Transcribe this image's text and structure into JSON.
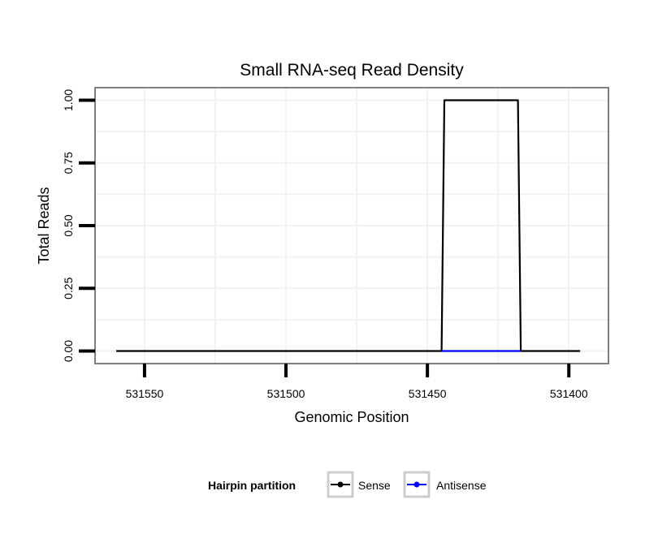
{
  "chart_data": {
    "type": "line",
    "title": "Small RNA-seq Read Density",
    "xlabel": "Genomic Position",
    "ylabel": "Total Reads",
    "xlim": [
      531567.5,
      531386
    ],
    "x_reversed": true,
    "ylim": [
      -0.05,
      1.05
    ],
    "x_ticks": [
      531550,
      531500,
      531450,
      531400
    ],
    "x_tick_labels": [
      "531550",
      "531500",
      "531450",
      "531400"
    ],
    "y_ticks": [
      0,
      0.25,
      0.5,
      0.75,
      1.0
    ],
    "y_tick_labels": [
      "0.00",
      "0.25",
      "0.50",
      "0.75",
      "1.00"
    ],
    "grid": true,
    "legend": {
      "title": "Hairpin partition",
      "placement": "bottom",
      "entries": [
        "Sense",
        "Antisense"
      ]
    },
    "series": [
      {
        "name": "Sense",
        "color": "#000000",
        "points": [
          [
            531560,
            0
          ],
          [
            531445,
            0
          ],
          [
            531444,
            1
          ],
          [
            531418,
            1
          ],
          [
            531417,
            0
          ],
          [
            531396,
            0
          ]
        ]
      },
      {
        "name": "Antisense",
        "color": "#0000ff",
        "points": [
          [
            531445,
            0
          ],
          [
            531417,
            0
          ]
        ]
      }
    ]
  }
}
